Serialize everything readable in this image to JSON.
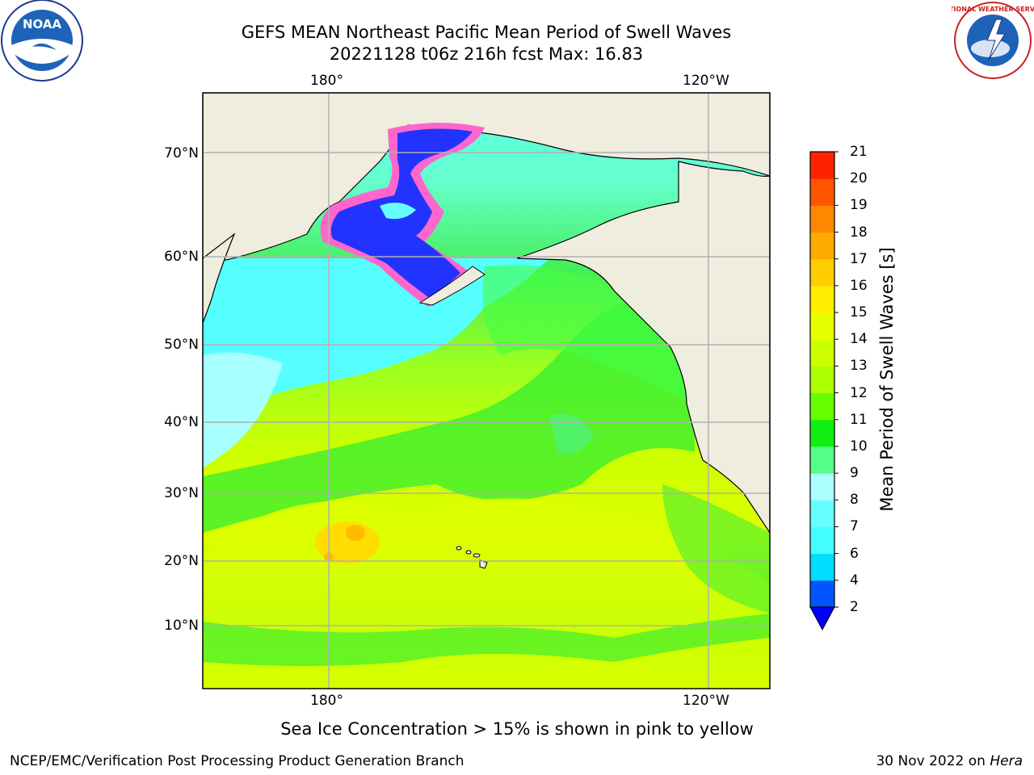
{
  "header": {
    "title": "GEFS MEAN Northeast Pacific Mean Period of Swell Waves",
    "subtitle": "20221128 t06z 216h fcst   Max: 16.83"
  },
  "map": {
    "lon_labels_top": [
      "180°",
      "120°W"
    ],
    "lon_labels_bottom": [
      "180°",
      "120°W"
    ],
    "lat_labels": [
      "70°N",
      "60°N",
      "50°N",
      "40°N",
      "30°N",
      "20°N",
      "10°N"
    ],
    "ocean_colors": {
      "ice_blue": "#0000ff",
      "ice_pink": "#ff66cc",
      "cyan": "#44ffff",
      "light_cyan": "#99ffff",
      "light_green": "#55ff88",
      "green": "#22ee22",
      "bright_green": "#66ff22",
      "yellow_green": "#ccff00",
      "yellow": "#eeff00",
      "orange": "#ffbb00"
    },
    "land_color": "#efedde",
    "grid_color": "#b0b0b0"
  },
  "colorbar": {
    "title": "Mean Period of Swell Waves [s]",
    "ticks": [
      "2",
      "4",
      "6",
      "7",
      "8",
      "9",
      "10",
      "11",
      "12",
      "13",
      "14",
      "15",
      "16",
      "17",
      "18",
      "19",
      "20",
      "21"
    ],
    "colors": [
      "#0055ff",
      "#00ddff",
      "#44ffff",
      "#66ffff",
      "#aaffff",
      "#55ff88",
      "#11ee11",
      "#66ff00",
      "#aaff00",
      "#ccff00",
      "#e8ff00",
      "#ffee00",
      "#ffcc00",
      "#ffaa00",
      "#ff8800",
      "#ff5500",
      "#ff2200"
    ],
    "under_color": "#0000ff"
  },
  "caption": "Sea Ice Concentration > 15% is shown in pink to yellow",
  "footer": {
    "left": "NCEP/EMC/Verification Post Processing Product Generation Branch",
    "right_date": "30 Nov 2022 on ",
    "right_host": "Hera"
  },
  "logos": {
    "noaa_text": "NOAA",
    "nws_text": "NATIONAL WEATHER SERVICE"
  }
}
